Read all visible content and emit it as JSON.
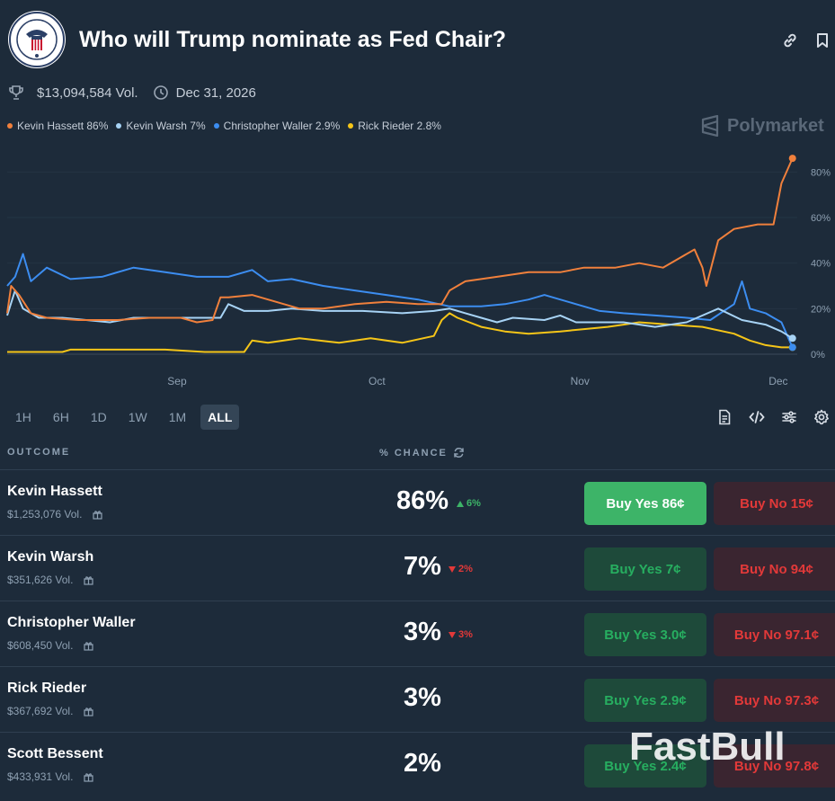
{
  "header": {
    "title": "Who will Trump nominate as Fed Chair?"
  },
  "meta": {
    "volume": "$13,094,584 Vol.",
    "end_date": "Dec 31, 2026"
  },
  "legend": [
    {
      "label": "Kevin Hassett 86%",
      "color": "#f0803c"
    },
    {
      "label": "Kevin Warsh 7%",
      "color": "#a7d3f5"
    },
    {
      "label": "Christopher Waller 2.9%",
      "color": "#3c8df0"
    },
    {
      "label": "Rick Rieder 2.8%",
      "color": "#f5c518"
    }
  ],
  "brand": {
    "name": "Polymarket"
  },
  "chart_data": {
    "type": "line",
    "x_ticks": [
      "Sep",
      "Oct",
      "Nov",
      "Dec"
    ],
    "y_ticks": [
      "80%",
      "60%",
      "40%",
      "20%",
      "0%"
    ],
    "ylim": [
      0,
      90
    ],
    "x_domain": [
      0,
      100
    ],
    "series": [
      {
        "name": "Kevin Hassett",
        "color": "#f0803c",
        "points": [
          [
            0,
            18
          ],
          [
            0.5,
            30
          ],
          [
            1.5,
            26
          ],
          [
            3,
            18
          ],
          [
            5,
            16
          ],
          [
            9,
            15
          ],
          [
            14,
            15
          ],
          [
            18,
            16
          ],
          [
            22,
            16
          ],
          [
            24,
            14
          ],
          [
            26,
            15
          ],
          [
            27,
            25
          ],
          [
            28,
            25
          ],
          [
            31,
            26
          ],
          [
            34,
            23
          ],
          [
            37,
            20
          ],
          [
            40,
            20
          ],
          [
            44,
            22
          ],
          [
            48,
            23
          ],
          [
            52,
            22
          ],
          [
            55,
            22
          ],
          [
            56,
            28
          ],
          [
            58,
            32
          ],
          [
            62,
            34
          ],
          [
            66,
            36
          ],
          [
            70,
            36
          ],
          [
            73,
            38
          ],
          [
            77,
            38
          ],
          [
            80,
            40
          ],
          [
            83,
            38
          ],
          [
            87,
            46
          ],
          [
            88,
            38
          ],
          [
            88.5,
            30
          ],
          [
            90,
            50
          ],
          [
            92,
            55
          ],
          [
            95,
            57
          ],
          [
            97,
            57
          ],
          [
            98,
            75
          ],
          [
            99.4,
            86
          ]
        ]
      },
      {
        "name": "Kevin Warsh",
        "color": "#a7d3f5",
        "points": [
          [
            0,
            17
          ],
          [
            1,
            28
          ],
          [
            2,
            20
          ],
          [
            4,
            16
          ],
          [
            7,
            16
          ],
          [
            10,
            15
          ],
          [
            13,
            14
          ],
          [
            16,
            16
          ],
          [
            20,
            16
          ],
          [
            24,
            16
          ],
          [
            27,
            16
          ],
          [
            28,
            22
          ],
          [
            30,
            19
          ],
          [
            33,
            19
          ],
          [
            36,
            20
          ],
          [
            40,
            19
          ],
          [
            45,
            19
          ],
          [
            50,
            18
          ],
          [
            54,
            19
          ],
          [
            56,
            20
          ],
          [
            58,
            18
          ],
          [
            60,
            16
          ],
          [
            62,
            14
          ],
          [
            64,
            16
          ],
          [
            68,
            15
          ],
          [
            70,
            17
          ],
          [
            72,
            14
          ],
          [
            75,
            14
          ],
          [
            78,
            14
          ],
          [
            82,
            12
          ],
          [
            86,
            14
          ],
          [
            90,
            20
          ],
          [
            93,
            15
          ],
          [
            96,
            13
          ],
          [
            98,
            10
          ],
          [
            99.4,
            7
          ]
        ]
      },
      {
        "name": "Christopher Waller",
        "color": "#3c8df0",
        "points": [
          [
            0,
            30
          ],
          [
            1,
            34
          ],
          [
            2,
            44
          ],
          [
            3,
            32
          ],
          [
            5,
            38
          ],
          [
            8,
            33
          ],
          [
            12,
            34
          ],
          [
            16,
            38
          ],
          [
            20,
            36
          ],
          [
            24,
            34
          ],
          [
            28,
            34
          ],
          [
            31,
            37
          ],
          [
            33,
            32
          ],
          [
            36,
            33
          ],
          [
            40,
            30
          ],
          [
            44,
            28
          ],
          [
            48,
            26
          ],
          [
            52,
            24
          ],
          [
            56,
            21
          ],
          [
            60,
            21
          ],
          [
            63,
            22
          ],
          [
            66,
            24
          ],
          [
            68,
            26
          ],
          [
            70,
            24
          ],
          [
            72,
            22
          ],
          [
            75,
            19
          ],
          [
            78,
            18
          ],
          [
            82,
            17
          ],
          [
            86,
            16
          ],
          [
            89,
            15
          ],
          [
            92,
            22
          ],
          [
            93,
            32
          ],
          [
            94,
            20
          ],
          [
            96,
            18
          ],
          [
            97,
            16
          ],
          [
            98,
            14
          ],
          [
            99.4,
            3
          ]
        ]
      },
      {
        "name": "Rick Rieder",
        "color": "#f5c518",
        "points": [
          [
            0,
            1
          ],
          [
            7,
            1
          ],
          [
            8,
            2
          ],
          [
            15,
            2
          ],
          [
            20,
            2
          ],
          [
            25,
            1
          ],
          [
            30,
            1
          ],
          [
            31,
            6
          ],
          [
            33,
            5
          ],
          [
            37,
            7
          ],
          [
            42,
            5
          ],
          [
            46,
            7
          ],
          [
            50,
            5
          ],
          [
            54,
            8
          ],
          [
            55,
            15
          ],
          [
            56,
            18
          ],
          [
            57,
            16
          ],
          [
            60,
            12
          ],
          [
            63,
            10
          ],
          [
            66,
            9
          ],
          [
            70,
            10
          ],
          [
            73,
            11
          ],
          [
            76,
            12
          ],
          [
            78,
            13
          ],
          [
            80,
            14
          ],
          [
            84,
            13
          ],
          [
            88,
            12
          ],
          [
            92,
            9
          ],
          [
            94,
            6
          ],
          [
            96,
            4
          ],
          [
            98,
            3
          ],
          [
            99.4,
            3
          ]
        ]
      }
    ]
  },
  "ranges": [
    "1H",
    "6H",
    "1D",
    "1W",
    "1M",
    "ALL"
  ],
  "active_range": "ALL",
  "table": {
    "col_outcome": "OUTCOME",
    "col_chance": "% CHANCE",
    "rows": [
      {
        "name": "Kevin Hassett",
        "vol": "$1,253,076 Vol.",
        "pct": "86%",
        "delta": "6%",
        "delta_dir": "up",
        "yes": "Buy Yes 86¢",
        "no": "Buy No 15¢"
      },
      {
        "name": "Kevin Warsh",
        "vol": "$351,626 Vol.",
        "pct": "7%",
        "delta": "2%",
        "delta_dir": "down",
        "yes": "Buy Yes 7¢",
        "no": "Buy No 94¢"
      },
      {
        "name": "Christopher Waller",
        "vol": "$608,450 Vol.",
        "pct": "3%",
        "delta": "3%",
        "delta_dir": "down",
        "yes": "Buy Yes 3.0¢",
        "no": "Buy No 97.1¢"
      },
      {
        "name": "Rick Rieder",
        "vol": "$367,692 Vol.",
        "pct": "3%",
        "delta": "",
        "delta_dir": "",
        "yes": "Buy Yes 2.9¢",
        "no": "Buy No 97.3¢"
      },
      {
        "name": "Scott Bessent",
        "vol": "$433,931 Vol.",
        "pct": "2%",
        "delta": "",
        "delta_dir": "",
        "yes": "Buy Yes 2.4¢",
        "no": "Buy No 97.8¢"
      }
    ]
  },
  "watermark": "FastBull"
}
